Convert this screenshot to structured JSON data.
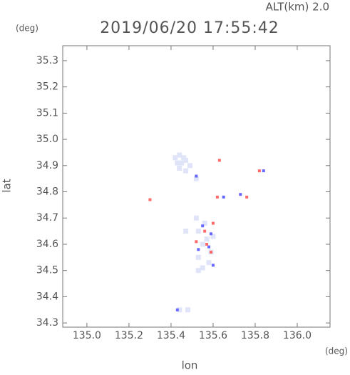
{
  "chart_data": {
    "type": "scatter",
    "title": "2019/06/20 17:55:42",
    "subtitle": "ALT(km) 2.0",
    "x_label": "lon",
    "x_unit": "(deg)",
    "y_label": "lat",
    "y_unit": "(deg)",
    "xlim": [
      134.885,
      136.156
    ],
    "ylim": [
      34.284,
      35.357
    ],
    "xticks": [
      {
        "value": 135.0,
        "label": "135.0"
      },
      135.2,
      135.4,
      135.6,
      135.8,
      {
        "value": 136.0,
        "label": "136.0"
      }
    ],
    "yticks": [
      34.3,
      34.4,
      34.5,
      34.6,
      34.7,
      34.8,
      34.9,
      {
        "value": 35.0,
        "label": "35.0"
      },
      35.1,
      35.2,
      35.3
    ],
    "series": [
      {
        "color": "#dfe4f8",
        "x": [
          135.42,
          135.44,
          135.46,
          135.43,
          135.45,
          135.47,
          135.49,
          135.44,
          135.47,
          135.52,
          135.53,
          135.53,
          135.55,
          135.57,
          135.53,
          135.56,
          135.52,
          135.59,
          135.58,
          135.55,
          135.6,
          135.47,
          135.44,
          135.48
        ],
        "values": [
          34.93,
          34.94,
          34.93,
          34.91,
          34.91,
          34.92,
          34.9,
          34.89,
          34.88,
          34.85,
          34.5,
          34.55,
          34.6,
          34.62,
          34.65,
          34.68,
          34.7,
          34.57,
          34.53,
          34.51,
          34.63,
          34.65,
          34.35,
          34.35
        ]
      },
      {
        "color": "#6868ff",
        "x": [
          135.6,
          135.59,
          135.55,
          135.84,
          135.73,
          135.58,
          135.43,
          135.52,
          135.65,
          135.53
        ],
        "values": [
          34.52,
          34.64,
          34.67,
          34.88,
          34.79,
          34.59,
          34.35,
          34.86,
          34.78,
          34.58
        ]
      },
      {
        "color": "#ff6a6a",
        "x": [
          135.82,
          135.6,
          135.57,
          135.52,
          135.59,
          135.3,
          135.62,
          135.63,
          135.76,
          135.56
        ],
        "values": [
          34.88,
          34.68,
          34.6,
          34.61,
          34.57,
          34.77,
          34.78,
          34.92,
          34.78,
          34.65
        ]
      }
    ]
  }
}
